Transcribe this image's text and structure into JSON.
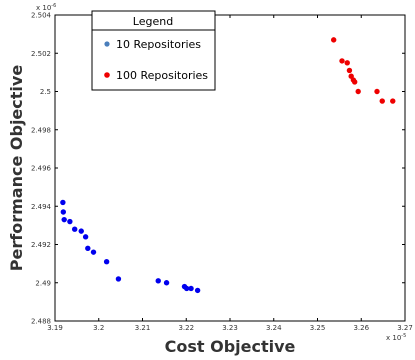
{
  "chart_data": {
    "type": "scatter",
    "title": "",
    "xlabel": "Cost Objective",
    "ylabel": "Performance Objective",
    "x_exponent_label": "x 10",
    "x_exponent_power": "-5",
    "y_exponent_label": "x 10",
    "y_exponent_power": "-6",
    "xlim": [
      3.19,
      3.27
    ],
    "ylim": [
      2.488,
      2.504
    ],
    "x_ticks": [
      "3.19",
      "3.2",
      "3.21",
      "3.22",
      "3.23",
      "3.24",
      "3.25",
      "3.26",
      "3.27"
    ],
    "y_ticks": [
      "2.488",
      "2.49",
      "2.492",
      "2.494",
      "2.496",
      "2.498",
      "2.5",
      "2.502",
      "2.504"
    ],
    "grid": false,
    "legend": {
      "title": "Legend",
      "position": "top-left",
      "entries": [
        "10 Repositories",
        "100 Repositories"
      ]
    },
    "series": [
      {
        "name": "10 Repositories",
        "color": "#0000ee",
        "legend_marker_color": "#4a7ebb",
        "x": [
          3.1918,
          3.1919,
          3.1921,
          3.1934,
          3.1945,
          3.196,
          3.197,
          3.1975,
          3.1988,
          3.2018,
          3.2045,
          3.2136,
          3.2155,
          3.2196,
          3.2201,
          3.2211,
          3.2226
        ],
        "y": [
          2.4942,
          2.4937,
          2.4933,
          2.4932,
          2.4928,
          2.4927,
          2.4924,
          2.4918,
          2.4916,
          2.4911,
          2.4902,
          2.4901,
          2.49,
          2.4898,
          2.4897,
          2.4897,
          2.4896
        ]
      },
      {
        "name": "100 Repositories",
        "color": "#ee0000",
        "legend_marker_color": "#ee0000",
        "x": [
          3.2537,
          3.2556,
          3.2568,
          3.2573,
          3.2577,
          3.2582,
          3.2585,
          3.2593,
          3.2636,
          3.2648,
          3.2672
        ],
        "y": [
          2.5027,
          2.5016,
          2.5015,
          2.5011,
          2.5008,
          2.5006,
          2.5005,
          2.5,
          2.5,
          2.4995,
          2.4995
        ]
      }
    ]
  }
}
